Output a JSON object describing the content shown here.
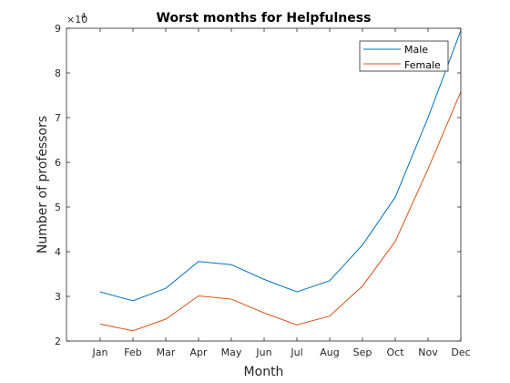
{
  "chart_data": {
    "type": "line",
    "title": "Worst months for Helpfulness",
    "xlabel": "Month",
    "ylabel": "Number of professors",
    "categories": [
      "Jan",
      "Feb",
      "Mar",
      "Apr",
      "May",
      "Jun",
      "Jul",
      "Aug",
      "Sep",
      "Oct",
      "Nov",
      "Dec"
    ],
    "ylim": [
      20000,
      90000
    ],
    "yticks": [
      20000,
      30000,
      40000,
      50000,
      60000,
      70000,
      80000,
      90000
    ],
    "ytick_labels": [
      "2",
      "3",
      "4",
      "5",
      "6",
      "7",
      "8",
      "9"
    ],
    "y_multiplier_base": "×10",
    "y_multiplier_exp": "4",
    "grid": false,
    "legend_position": "top-right",
    "series": [
      {
        "name": "Male",
        "color": "#0072BD",
        "values": [
          31000,
          29000,
          31800,
          37800,
          37100,
          33800,
          31000,
          33500,
          41500,
          52200,
          70000,
          89500
        ]
      },
      {
        "name": "Female",
        "color": "#D95319",
        "values": [
          23800,
          22300,
          24900,
          30100,
          29400,
          26300,
          23600,
          25600,
          32300,
          42300,
          58500,
          75800
        ]
      }
    ]
  }
}
